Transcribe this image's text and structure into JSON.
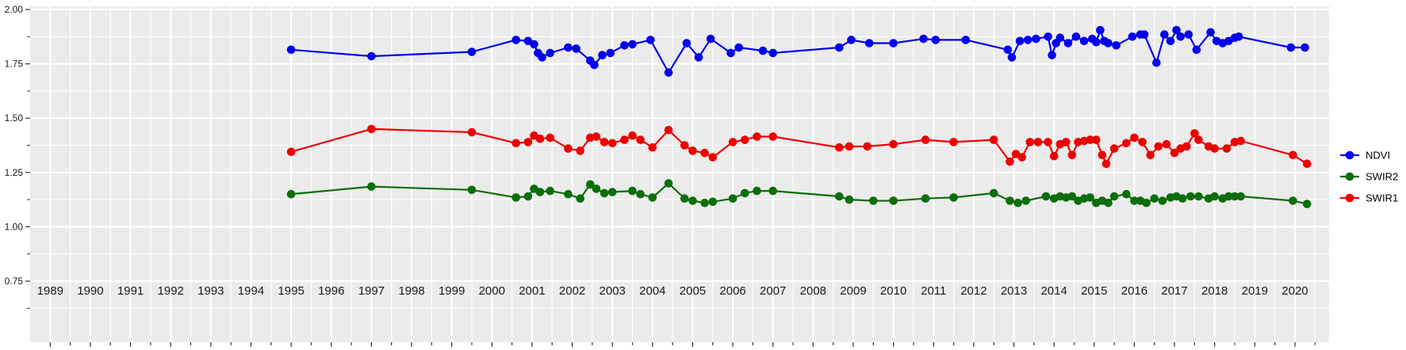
{
  "chart_data": {
    "type": "line",
    "title": "",
    "xlabel": "",
    "ylabel": "",
    "grid": true,
    "legend_position": "right",
    "panel_background": "#EBEBEB",
    "grid_color": "#FFFFFF",
    "axis_text_color": "#1A1A1A",
    "tick_color": "#333333",
    "xlim": [
      1988.5,
      2020.85
    ],
    "ylim": [
      0.75,
      2.0
    ],
    "x_ticks": [
      1989,
      1990,
      1991,
      1992,
      1993,
      1994,
      1995,
      1996,
      1997,
      1998,
      1999,
      2000,
      2001,
      2002,
      2003,
      2004,
      2005,
      2006,
      2007,
      2008,
      2009,
      2010,
      2011,
      2012,
      2013,
      2014,
      2015,
      2016,
      2017,
      2018,
      2019,
      2020
    ],
    "y_ticks": [
      0.75,
      1.0,
      1.25,
      1.5,
      1.75,
      2.0
    ],
    "y_tick_labels": [
      "0.75",
      "1.00",
      "1.25",
      "1.50",
      "1.75",
      "2.00"
    ],
    "legend": [
      "NDVI",
      "SWIR2",
      "SWIR1"
    ],
    "series": [
      {
        "name": "NDVI",
        "color": "#0000EE",
        "points": [
          [
            1995.0,
            1.815
          ],
          [
            1997.0,
            1.785
          ],
          [
            1999.5,
            1.805
          ],
          [
            2000.6,
            1.86
          ],
          [
            2000.9,
            1.855
          ],
          [
            2001.05,
            1.84
          ],
          [
            2001.15,
            1.8
          ],
          [
            2001.25,
            1.78
          ],
          [
            2001.45,
            1.8
          ],
          [
            2001.9,
            1.825
          ],
          [
            2002.1,
            1.82
          ],
          [
            2002.45,
            1.765
          ],
          [
            2002.55,
            1.745
          ],
          [
            2002.75,
            1.79
          ],
          [
            2002.95,
            1.8
          ],
          [
            2003.3,
            1.835
          ],
          [
            2003.5,
            1.84
          ],
          [
            2003.95,
            1.86
          ],
          [
            2004.4,
            1.71
          ],
          [
            2004.85,
            1.845
          ],
          [
            2005.15,
            1.78
          ],
          [
            2005.45,
            1.865
          ],
          [
            2005.95,
            1.8
          ],
          [
            2006.15,
            1.825
          ],
          [
            2006.75,
            1.81
          ],
          [
            2007.0,
            1.8
          ],
          [
            2008.65,
            1.825
          ],
          [
            2008.95,
            1.86
          ],
          [
            2009.4,
            1.845
          ],
          [
            2010.0,
            1.845
          ],
          [
            2010.75,
            1.865
          ],
          [
            2011.05,
            1.86
          ],
          [
            2011.8,
            1.86
          ],
          [
            2012.85,
            1.815
          ],
          [
            2012.95,
            1.78
          ],
          [
            2013.15,
            1.855
          ],
          [
            2013.35,
            1.86
          ],
          [
            2013.55,
            1.865
          ],
          [
            2013.85,
            1.875
          ],
          [
            2013.95,
            1.79
          ],
          [
            2014.05,
            1.845
          ],
          [
            2014.15,
            1.87
          ],
          [
            2014.35,
            1.845
          ],
          [
            2014.55,
            1.875
          ],
          [
            2014.75,
            1.855
          ],
          [
            2014.95,
            1.865
          ],
          [
            2015.05,
            1.85
          ],
          [
            2015.15,
            1.905
          ],
          [
            2015.25,
            1.855
          ],
          [
            2015.35,
            1.845
          ],
          [
            2015.55,
            1.835
          ],
          [
            2015.95,
            1.875
          ],
          [
            2016.15,
            1.885
          ],
          [
            2016.25,
            1.885
          ],
          [
            2016.55,
            1.755
          ],
          [
            2016.75,
            1.885
          ],
          [
            2016.9,
            1.855
          ],
          [
            2017.05,
            1.905
          ],
          [
            2017.15,
            1.875
          ],
          [
            2017.35,
            1.885
          ],
          [
            2017.55,
            1.815
          ],
          [
            2017.9,
            1.895
          ],
          [
            2018.05,
            1.855
          ],
          [
            2018.2,
            1.845
          ],
          [
            2018.35,
            1.855
          ],
          [
            2018.5,
            1.87
          ],
          [
            2018.6,
            1.875
          ],
          [
            2019.9,
            1.825
          ],
          [
            2020.25,
            1.825
          ]
        ]
      },
      {
        "name": "SWIR2",
        "color": "#0B6E0B",
        "points": [
          [
            1995.0,
            1.15
          ],
          [
            1997.0,
            1.185
          ],
          [
            1999.5,
            1.17
          ],
          [
            2000.6,
            1.135
          ],
          [
            2000.9,
            1.14
          ],
          [
            2001.05,
            1.175
          ],
          [
            2001.2,
            1.16
          ],
          [
            2001.45,
            1.165
          ],
          [
            2001.9,
            1.15
          ],
          [
            2002.2,
            1.13
          ],
          [
            2002.45,
            1.195
          ],
          [
            2002.6,
            1.175
          ],
          [
            2002.8,
            1.155
          ],
          [
            2003.0,
            1.16
          ],
          [
            2003.5,
            1.165
          ],
          [
            2003.7,
            1.15
          ],
          [
            2004.0,
            1.135
          ],
          [
            2004.4,
            1.2
          ],
          [
            2004.8,
            1.13
          ],
          [
            2005.0,
            1.12
          ],
          [
            2005.3,
            1.11
          ],
          [
            2005.5,
            1.115
          ],
          [
            2006.0,
            1.13
          ],
          [
            2006.3,
            1.155
          ],
          [
            2006.6,
            1.165
          ],
          [
            2007.0,
            1.165
          ],
          [
            2008.65,
            1.14
          ],
          [
            2008.9,
            1.125
          ],
          [
            2009.5,
            1.12
          ],
          [
            2010.0,
            1.12
          ],
          [
            2010.8,
            1.13
          ],
          [
            2011.5,
            1.135
          ],
          [
            2012.5,
            1.155
          ],
          [
            2012.9,
            1.12
          ],
          [
            2013.1,
            1.11
          ],
          [
            2013.3,
            1.12
          ],
          [
            2013.8,
            1.14
          ],
          [
            2014.0,
            1.13
          ],
          [
            2014.15,
            1.14
          ],
          [
            2014.3,
            1.135
          ],
          [
            2014.45,
            1.14
          ],
          [
            2014.6,
            1.12
          ],
          [
            2014.75,
            1.13
          ],
          [
            2014.9,
            1.135
          ],
          [
            2015.05,
            1.11
          ],
          [
            2015.2,
            1.12
          ],
          [
            2015.35,
            1.11
          ],
          [
            2015.5,
            1.14
          ],
          [
            2015.8,
            1.15
          ],
          [
            2016.0,
            1.12
          ],
          [
            2016.15,
            1.12
          ],
          [
            2016.3,
            1.11
          ],
          [
            2016.5,
            1.13
          ],
          [
            2016.7,
            1.12
          ],
          [
            2016.9,
            1.135
          ],
          [
            2017.05,
            1.14
          ],
          [
            2017.2,
            1.13
          ],
          [
            2017.4,
            1.14
          ],
          [
            2017.6,
            1.14
          ],
          [
            2017.85,
            1.13
          ],
          [
            2018.0,
            1.14
          ],
          [
            2018.2,
            1.13
          ],
          [
            2018.35,
            1.14
          ],
          [
            2018.5,
            1.14
          ],
          [
            2018.65,
            1.14
          ],
          [
            2019.95,
            1.12
          ],
          [
            2020.3,
            1.105
          ]
        ]
      },
      {
        "name": "SWIR1",
        "color": "#EE0000",
        "points": [
          [
            1995.0,
            1.345
          ],
          [
            1997.0,
            1.45
          ],
          [
            1999.5,
            1.435
          ],
          [
            2000.6,
            1.385
          ],
          [
            2000.9,
            1.39
          ],
          [
            2001.05,
            1.42
          ],
          [
            2001.2,
            1.405
          ],
          [
            2001.45,
            1.41
          ],
          [
            2001.9,
            1.36
          ],
          [
            2002.2,
            1.35
          ],
          [
            2002.45,
            1.41
          ],
          [
            2002.6,
            1.415
          ],
          [
            2002.8,
            1.39
          ],
          [
            2003.0,
            1.385
          ],
          [
            2003.3,
            1.4
          ],
          [
            2003.5,
            1.42
          ],
          [
            2003.7,
            1.4
          ],
          [
            2004.0,
            1.365
          ],
          [
            2004.4,
            1.445
          ],
          [
            2004.8,
            1.375
          ],
          [
            2005.0,
            1.35
          ],
          [
            2005.3,
            1.34
          ],
          [
            2005.5,
            1.32
          ],
          [
            2006.0,
            1.39
          ],
          [
            2006.3,
            1.4
          ],
          [
            2006.6,
            1.415
          ],
          [
            2007.0,
            1.415
          ],
          [
            2008.65,
            1.365
          ],
          [
            2008.9,
            1.37
          ],
          [
            2009.35,
            1.37
          ],
          [
            2010.0,
            1.38
          ],
          [
            2010.8,
            1.4
          ],
          [
            2011.5,
            1.39
          ],
          [
            2012.5,
            1.4
          ],
          [
            2012.9,
            1.3
          ],
          [
            2013.05,
            1.335
          ],
          [
            2013.2,
            1.32
          ],
          [
            2013.4,
            1.39
          ],
          [
            2013.6,
            1.39
          ],
          [
            2013.85,
            1.39
          ],
          [
            2014.0,
            1.325
          ],
          [
            2014.15,
            1.38
          ],
          [
            2014.3,
            1.39
          ],
          [
            2014.45,
            1.33
          ],
          [
            2014.6,
            1.39
          ],
          [
            2014.75,
            1.395
          ],
          [
            2014.9,
            1.4
          ],
          [
            2015.05,
            1.4
          ],
          [
            2015.2,
            1.33
          ],
          [
            2015.3,
            1.29
          ],
          [
            2015.5,
            1.36
          ],
          [
            2015.8,
            1.385
          ],
          [
            2016.0,
            1.41
          ],
          [
            2016.2,
            1.39
          ],
          [
            2016.4,
            1.33
          ],
          [
            2016.6,
            1.37
          ],
          [
            2016.8,
            1.38
          ],
          [
            2017.0,
            1.34
          ],
          [
            2017.15,
            1.36
          ],
          [
            2017.3,
            1.37
          ],
          [
            2017.5,
            1.43
          ],
          [
            2017.6,
            1.4
          ],
          [
            2017.85,
            1.37
          ],
          [
            2018.0,
            1.36
          ],
          [
            2018.3,
            1.36
          ],
          [
            2018.5,
            1.39
          ],
          [
            2018.65,
            1.395
          ],
          [
            2019.95,
            1.33
          ],
          [
            2020.3,
            1.29
          ]
        ]
      }
    ]
  }
}
